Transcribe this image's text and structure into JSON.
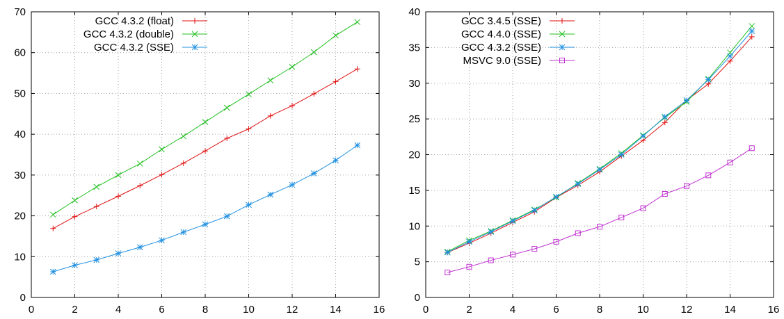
{
  "chart_data": [
    {
      "type": "line",
      "grid": true,
      "legend_position": "top-left",
      "xlim": [
        0,
        16
      ],
      "ylim": [
        0,
        70
      ],
      "x_ticks": [
        0,
        2,
        4,
        6,
        8,
        10,
        12,
        14,
        16
      ],
      "y_ticks": [
        0,
        10,
        20,
        30,
        40,
        50,
        60,
        70
      ],
      "x": [
        1,
        2,
        3,
        4,
        5,
        6,
        7,
        8,
        9,
        10,
        11,
        12,
        13,
        14,
        15
      ],
      "series": [
        {
          "name": "GCC 4.3.2 (float)",
          "color": "#e01010",
          "marker": "plus",
          "values": [
            16.9,
            19.8,
            22.3,
            24.8,
            27.4,
            30.1,
            32.9,
            35.9,
            39.0,
            41.3,
            44.5,
            47.0,
            49.9,
            52.9,
            56.0
          ]
        },
        {
          "name": "GCC 4.3.2 (double)",
          "color": "#20c020",
          "marker": "cross",
          "values": [
            20.3,
            23.8,
            27.1,
            30.0,
            32.8,
            36.3,
            39.5,
            43.0,
            46.5,
            49.8,
            53.2,
            56.5,
            60.1,
            64.2,
            67.5
          ]
        },
        {
          "name": "GCC 4.3.2 (SSE)",
          "color": "#2090e0",
          "marker": "star",
          "values": [
            6.3,
            7.9,
            9.2,
            10.8,
            12.3,
            14.0,
            16.0,
            17.9,
            19.9,
            22.7,
            25.2,
            27.6,
            30.4,
            33.6,
            37.3
          ]
        }
      ]
    },
    {
      "type": "line",
      "grid": true,
      "legend_position": "top-left",
      "xlim": [
        0,
        16
      ],
      "ylim": [
        0,
        40
      ],
      "x_ticks": [
        0,
        2,
        4,
        6,
        8,
        10,
        12,
        14,
        16
      ],
      "y_ticks": [
        0,
        5,
        10,
        15,
        20,
        25,
        30,
        35,
        40
      ],
      "x": [
        1,
        2,
        3,
        4,
        5,
        6,
        7,
        8,
        9,
        10,
        11,
        12,
        13,
        14,
        15
      ],
      "series": [
        {
          "name": "GCC 3.4.5 (SSE)",
          "color": "#e01010",
          "marker": "plus",
          "values": [
            6.3,
            7.6,
            9.0,
            10.5,
            12.0,
            14.0,
            15.7,
            17.6,
            19.8,
            22.0,
            24.5,
            27.6,
            29.9,
            33.1,
            36.5
          ]
        },
        {
          "name": "GCC 4.4.0 (SSE)",
          "color": "#20c020",
          "marker": "cross",
          "values": [
            6.4,
            8.0,
            9.3,
            10.8,
            12.3,
            14.0,
            16.0,
            18.0,
            20.2,
            22.7,
            25.2,
            27.4,
            30.6,
            34.3,
            38.0
          ]
        },
        {
          "name": "GCC 4.3.2 (SSE)",
          "color": "#2090e0",
          "marker": "star",
          "values": [
            6.3,
            7.8,
            9.2,
            10.7,
            12.2,
            14.1,
            15.9,
            17.9,
            20.0,
            22.6,
            25.3,
            27.6,
            30.5,
            33.8,
            37.3
          ]
        },
        {
          "name": "MSVC 9.0 (SSE)",
          "color": "#c030d0",
          "marker": "square",
          "values": [
            3.5,
            4.3,
            5.2,
            6.0,
            6.8,
            7.8,
            9.0,
            9.9,
            11.2,
            12.5,
            14.5,
            15.6,
            17.1,
            18.9,
            20.9
          ]
        }
      ]
    }
  ]
}
